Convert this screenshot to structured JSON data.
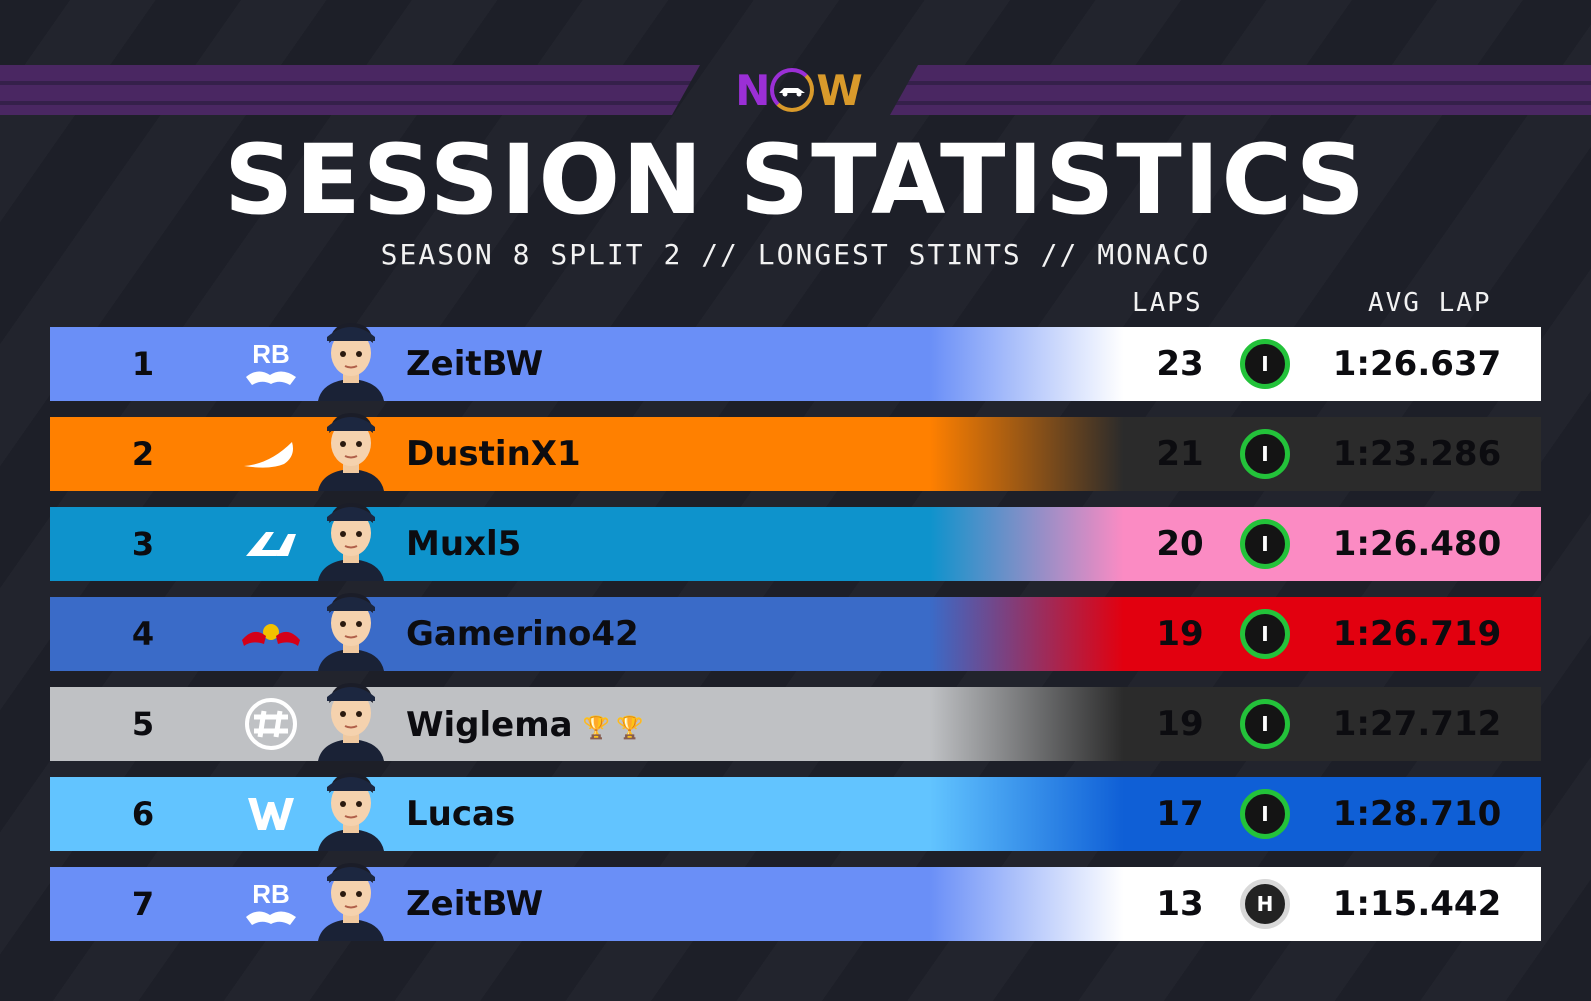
{
  "brand": {
    "logo_left": "N",
    "logo_right": "W"
  },
  "title": "SESSION STATISTICS",
  "subtitle": "SEASON 8 SPLIT 2 // LONGEST STINTS // MONACO",
  "headers": {
    "laps": "LAPS",
    "avg_lap": "AVG LAP"
  },
  "rows": [
    {
      "pos": "1",
      "team": "RB",
      "name": "ZeitBW",
      "laps": "23",
      "tyre": "I",
      "tyre_type": "intermediate",
      "avg": "1:26.637",
      "color": "#6a8ff7",
      "fade": "#ffffff",
      "trophies": 0
    },
    {
      "pos": "2",
      "team": "McLaren",
      "name": "DustinX1",
      "laps": "21",
      "tyre": "I",
      "tyre_type": "intermediate",
      "avg": "1:23.286",
      "color": "#ff8000",
      "fade": "#2b2b2b",
      "trophies": 0
    },
    {
      "pos": "3",
      "team": "Alpine",
      "name": "Muxl5",
      "laps": "20",
      "tyre": "I",
      "tyre_type": "intermediate",
      "avg": "1:26.480",
      "color": "#0e93cc",
      "fade": "#fb8bc3",
      "trophies": 0
    },
    {
      "pos": "4",
      "team": "Red Bull",
      "name": "Gamerino42",
      "laps": "19",
      "tyre": "I",
      "tyre_type": "intermediate",
      "avg": "1:26.719",
      "color": "#3a6bc8",
      "fade": "#e2000f",
      "trophies": 0
    },
    {
      "pos": "5",
      "team": "Haas",
      "name": "Wiglema",
      "laps": "19",
      "tyre": "I",
      "tyre_type": "intermediate",
      "avg": "1:27.712",
      "color": "#bfc1c4",
      "fade": "#2b2b2b",
      "trophies": 2
    },
    {
      "pos": "6",
      "team": "Williams",
      "name": "Lucas",
      "laps": "17",
      "tyre": "I",
      "tyre_type": "intermediate",
      "avg": "1:28.710",
      "color": "#62c4ff",
      "fade": "#0f5fd6",
      "trophies": 0
    },
    {
      "pos": "7",
      "team": "RB",
      "name": "ZeitBW",
      "laps": "13",
      "tyre": "H",
      "tyre_type": "hard",
      "avg": "1:15.442",
      "color": "#6a8ff7",
      "fade": "#ffffff",
      "trophies": 0
    }
  ]
}
